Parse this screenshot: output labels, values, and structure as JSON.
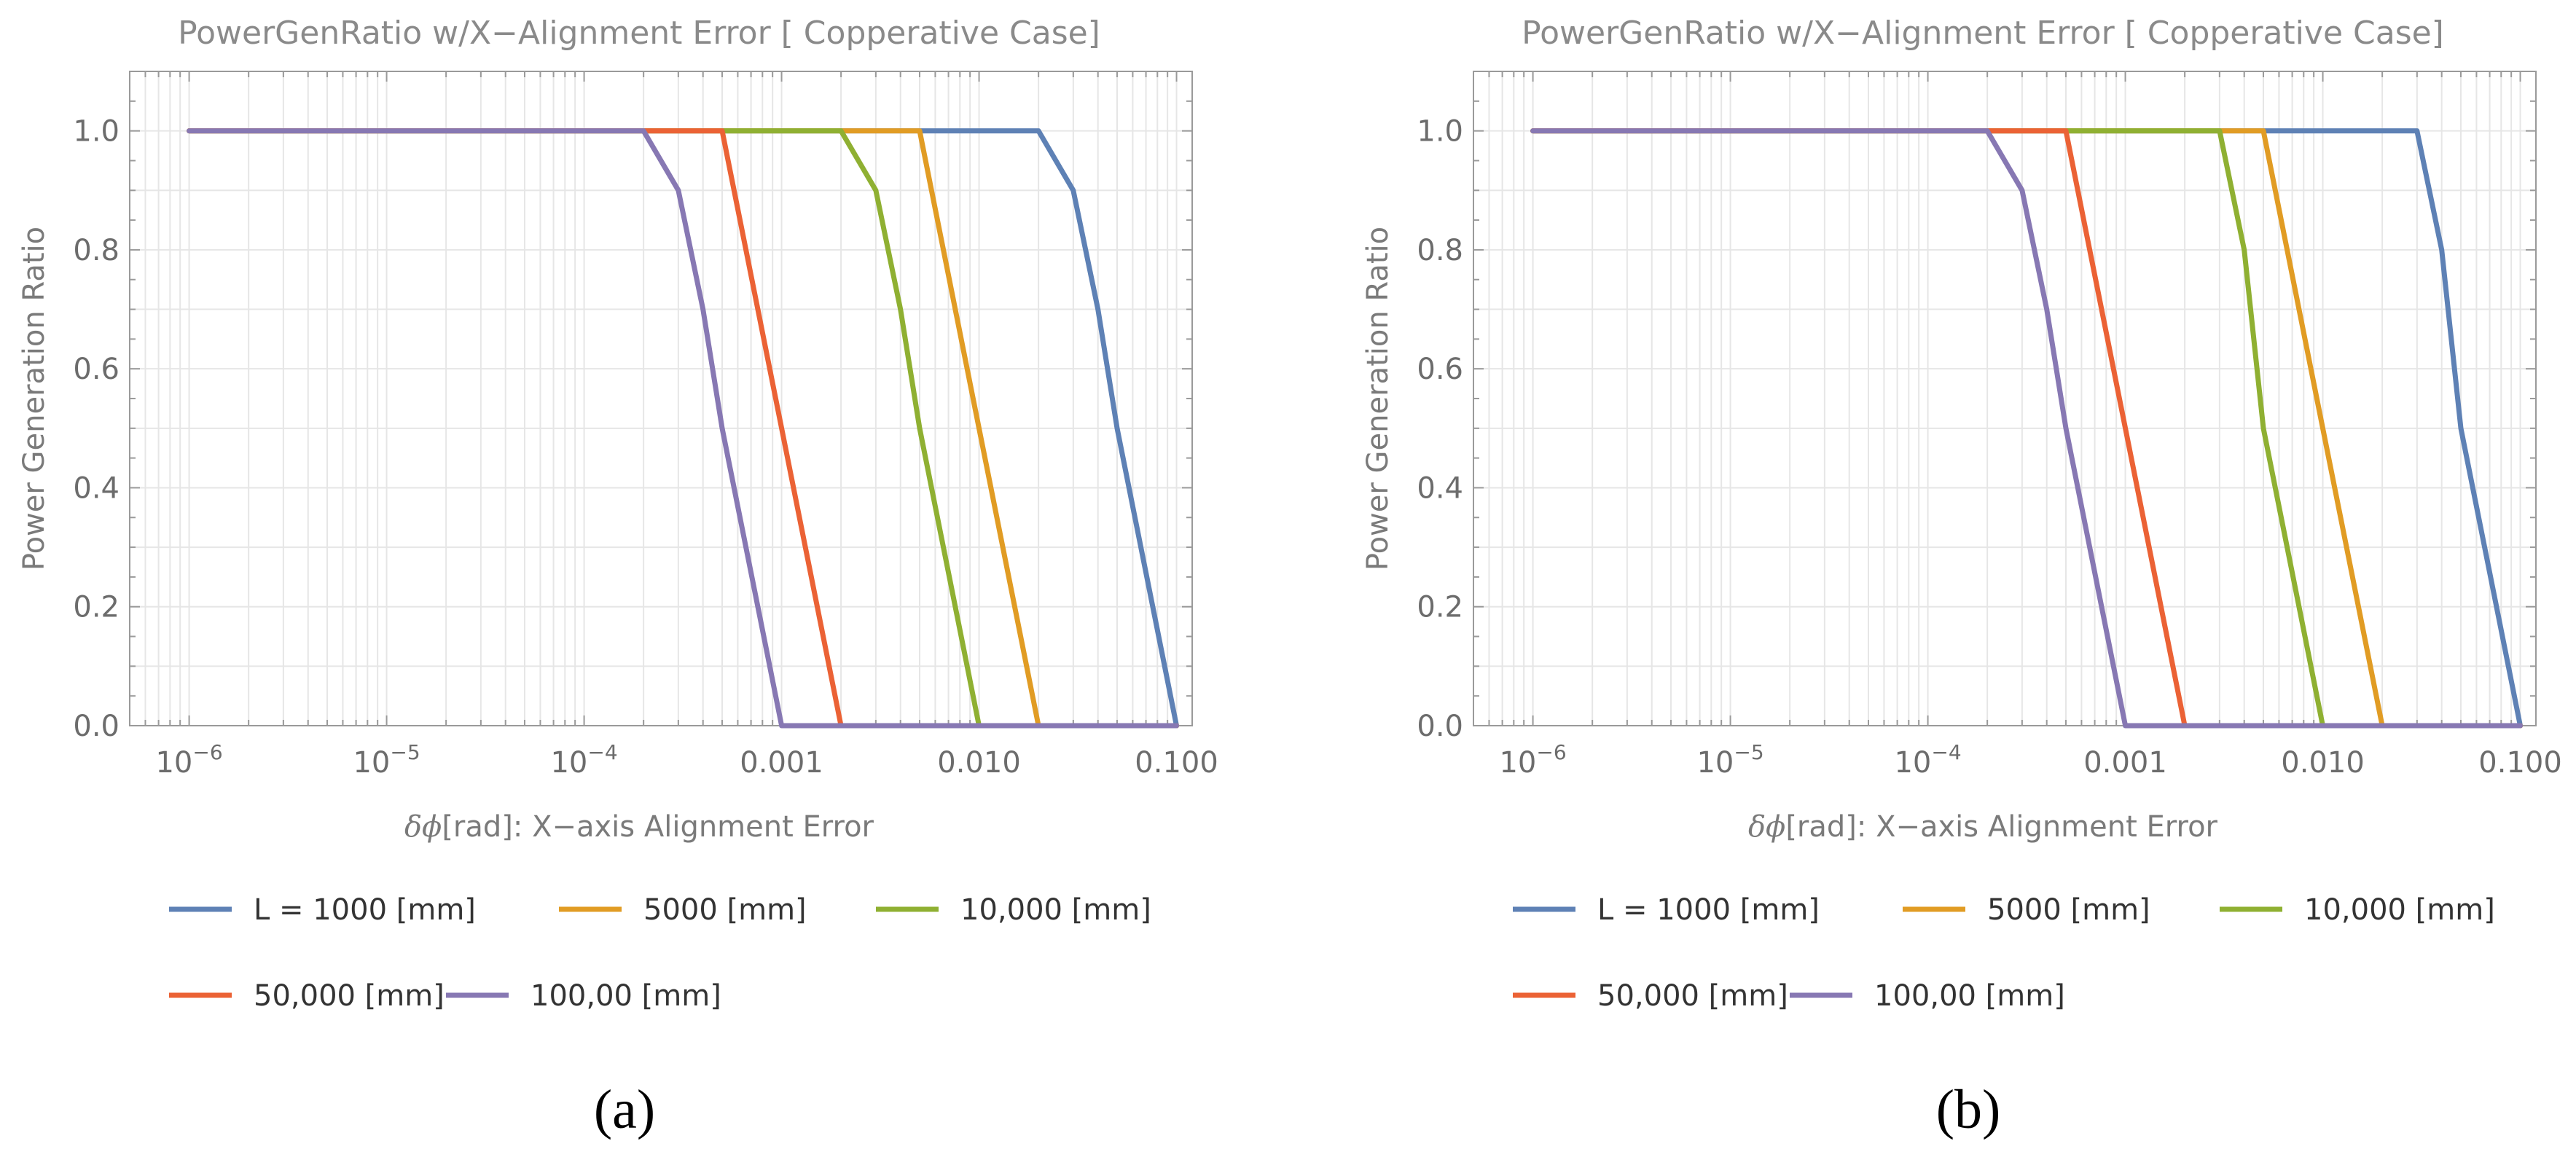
{
  "chart_data": [
    {
      "type": "line",
      "panel": "a",
      "caption": "(a)",
      "title": "PowerGenRatio w/X−Alignment Error [ Copperative Case]",
      "xlabel_symbol": "δϕ",
      "xlabel": "[rad]: X−axis Alignment Error",
      "ylabel": "Power Generation Ratio",
      "xscale": "log",
      "xlim": [
        5e-07,
        0.12
      ],
      "ylim": [
        0,
        1.1
      ],
      "x_major_ticks": [
        1e-06,
        1e-05,
        0.0001,
        0.001,
        0.01,
        0.1
      ],
      "x_tick_labels": [
        {
          "base": "10",
          "exp": "−6"
        },
        {
          "base": "10",
          "exp": "−5"
        },
        {
          "base": "10",
          "exp": "−4"
        },
        {
          "base": "0.001",
          "exp": ""
        },
        {
          "base": "0.010",
          "exp": ""
        },
        {
          "base": "0.100",
          "exp": ""
        }
      ],
      "y_major_ticks": [
        0,
        0.2,
        0.4,
        0.6,
        0.8,
        1.0
      ],
      "y_tick_labels": [
        "0.0",
        "0.2",
        "0.4",
        "0.6",
        "0.8",
        "1.0"
      ],
      "grid": true,
      "legend": [
        {
          "name": "L = 1000 [mm]",
          "color": "#5e81b5"
        },
        {
          "name": "5000 [mm]",
          "color": "#e19c24"
        },
        {
          "name": "10,000 [mm]",
          "color": "#8fb032"
        },
        {
          "name": "50,000 [mm]",
          "color": "#eb6235"
        },
        {
          "name": "100,00 [mm]",
          "color": "#8778b3"
        }
      ],
      "series": [
        {
          "name": "L = 1000 [mm]",
          "color": "#5e81b5",
          "x": [
            1e-06,
            2e-06,
            5e-06,
            1e-05,
            2e-05,
            5e-05,
            0.0001,
            0.0002,
            0.0005,
            0.001,
            0.002,
            0.005,
            0.01,
            0.02,
            0.03,
            0.04,
            0.05,
            0.1
          ],
          "y": [
            1.0,
            1.0,
            1.0,
            1.0,
            1.0,
            1.0,
            1.0,
            1.0,
            1.0,
            1.0,
            1.0,
            1.0,
            1.0,
            1.0,
            0.9,
            0.7,
            0.5,
            0.0
          ]
        },
        {
          "name": "5000 [mm]",
          "color": "#e19c24",
          "x": [
            1e-06,
            2e-06,
            5e-06,
            1e-05,
            2e-05,
            5e-05,
            0.0001,
            0.0002,
            0.0005,
            0.001,
            0.002,
            0.005,
            0.01,
            0.02,
            0.05,
            0.1
          ],
          "y": [
            1.0,
            1.0,
            1.0,
            1.0,
            1.0,
            1.0,
            1.0,
            1.0,
            1.0,
            1.0,
            1.0,
            1.0,
            0.5,
            0.0,
            0.0,
            0.0
          ]
        },
        {
          "name": "10,000 [mm]",
          "color": "#8fb032",
          "x": [
            1e-06,
            2e-06,
            5e-06,
            1e-05,
            2e-05,
            5e-05,
            0.0001,
            0.0002,
            0.0005,
            0.001,
            0.002,
            0.003,
            0.004,
            0.005,
            0.01,
            0.02,
            0.05,
            0.1
          ],
          "y": [
            1.0,
            1.0,
            1.0,
            1.0,
            1.0,
            1.0,
            1.0,
            1.0,
            1.0,
            1.0,
            1.0,
            0.9,
            0.7,
            0.5,
            0.0,
            0.0,
            0.0,
            0.0
          ]
        },
        {
          "name": "50,000 [mm]",
          "color": "#eb6235",
          "x": [
            1e-06,
            2e-06,
            5e-06,
            1e-05,
            2e-05,
            5e-05,
            0.0001,
            0.0002,
            0.0005,
            0.001,
            0.002,
            0.005,
            0.01,
            0.02,
            0.05,
            0.1
          ],
          "y": [
            1.0,
            1.0,
            1.0,
            1.0,
            1.0,
            1.0,
            1.0,
            1.0,
            1.0,
            0.5,
            0.0,
            0.0,
            0.0,
            0.0,
            0.0,
            0.0
          ]
        },
        {
          "name": "100,00 [mm]",
          "color": "#8778b3",
          "x": [
            1e-06,
            2e-06,
            5e-06,
            1e-05,
            2e-05,
            5e-05,
            0.0001,
            0.0002,
            0.0003,
            0.0004,
            0.0005,
            0.001,
            0.002,
            0.005,
            0.01,
            0.02,
            0.05,
            0.1
          ],
          "y": [
            1.0,
            1.0,
            1.0,
            1.0,
            1.0,
            1.0,
            1.0,
            1.0,
            0.9,
            0.7,
            0.5,
            0.0,
            0.0,
            0.0,
            0.0,
            0.0,
            0.0,
            0.0
          ]
        }
      ]
    },
    {
      "type": "line",
      "panel": "b",
      "caption": "(b)",
      "title": "PowerGenRatio w/X−Alignment Error [ Copperative Case]",
      "xlabel_symbol": "δϕ",
      "xlabel": "[rad]: X−axis Alignment Error",
      "ylabel": "Power Generation Ratio",
      "xscale": "log",
      "xlim": [
        5e-07,
        0.12
      ],
      "ylim": [
        0,
        1.1
      ],
      "x_major_ticks": [
        1e-06,
        1e-05,
        0.0001,
        0.001,
        0.01,
        0.1
      ],
      "x_tick_labels": [
        {
          "base": "10",
          "exp": "−6"
        },
        {
          "base": "10",
          "exp": "−5"
        },
        {
          "base": "10",
          "exp": "−4"
        },
        {
          "base": "0.001",
          "exp": ""
        },
        {
          "base": "0.010",
          "exp": ""
        },
        {
          "base": "0.100",
          "exp": ""
        }
      ],
      "y_major_ticks": [
        0,
        0.2,
        0.4,
        0.6,
        0.8,
        1.0
      ],
      "y_tick_labels": [
        "0.0",
        "0.2",
        "0.4",
        "0.6",
        "0.8",
        "1.0"
      ],
      "grid": true,
      "legend": [
        {
          "name": "L = 1000 [mm]",
          "color": "#5e81b5"
        },
        {
          "name": "5000 [mm]",
          "color": "#e19c24"
        },
        {
          "name": "10,000 [mm]",
          "color": "#8fb032"
        },
        {
          "name": "50,000 [mm]",
          "color": "#eb6235"
        },
        {
          "name": "100,00 [mm]",
          "color": "#8778b3"
        }
      ],
      "series": [
        {
          "name": "L = 1000 [mm]",
          "color": "#5e81b5",
          "x": [
            1e-06,
            2e-06,
            5e-06,
            1e-05,
            2e-05,
            5e-05,
            0.0001,
            0.0002,
            0.0005,
            0.001,
            0.002,
            0.005,
            0.01,
            0.02,
            0.03,
            0.04,
            0.05,
            0.1
          ],
          "y": [
            1.0,
            1.0,
            1.0,
            1.0,
            1.0,
            1.0,
            1.0,
            1.0,
            1.0,
            1.0,
            1.0,
            1.0,
            1.0,
            1.0,
            1.0,
            0.8,
            0.5,
            0.0
          ]
        },
        {
          "name": "5000 [mm]",
          "color": "#e19c24",
          "x": [
            1e-06,
            2e-06,
            5e-06,
            1e-05,
            2e-05,
            5e-05,
            0.0001,
            0.0002,
            0.0005,
            0.001,
            0.002,
            0.005,
            0.01,
            0.02,
            0.05,
            0.1
          ],
          "y": [
            1.0,
            1.0,
            1.0,
            1.0,
            1.0,
            1.0,
            1.0,
            1.0,
            1.0,
            1.0,
            1.0,
            1.0,
            0.5,
            0.0,
            0.0,
            0.0
          ]
        },
        {
          "name": "10,000 [mm]",
          "color": "#8fb032",
          "x": [
            1e-06,
            2e-06,
            5e-06,
            1e-05,
            2e-05,
            5e-05,
            0.0001,
            0.0002,
            0.0005,
            0.001,
            0.002,
            0.003,
            0.004,
            0.005,
            0.01,
            0.02,
            0.05,
            0.1
          ],
          "y": [
            1.0,
            1.0,
            1.0,
            1.0,
            1.0,
            1.0,
            1.0,
            1.0,
            1.0,
            1.0,
            1.0,
            1.0,
            0.8,
            0.5,
            0.0,
            0.0,
            0.0,
            0.0
          ]
        },
        {
          "name": "50,000 [mm]",
          "color": "#eb6235",
          "x": [
            1e-06,
            2e-06,
            5e-06,
            1e-05,
            2e-05,
            5e-05,
            0.0001,
            0.0002,
            0.0005,
            0.001,
            0.002,
            0.005,
            0.01,
            0.02,
            0.05,
            0.1
          ],
          "y": [
            1.0,
            1.0,
            1.0,
            1.0,
            1.0,
            1.0,
            1.0,
            1.0,
            1.0,
            0.5,
            0.0,
            0.0,
            0.0,
            0.0,
            0.0,
            0.0
          ]
        },
        {
          "name": "100,00 [mm]",
          "color": "#8778b3",
          "x": [
            1e-06,
            2e-06,
            5e-06,
            1e-05,
            2e-05,
            5e-05,
            0.0001,
            0.0002,
            0.0003,
            0.0004,
            0.0005,
            0.001,
            0.002,
            0.005,
            0.01,
            0.02,
            0.05,
            0.1
          ],
          "y": [
            1.0,
            1.0,
            1.0,
            1.0,
            1.0,
            1.0,
            1.0,
            1.0,
            0.9,
            0.7,
            0.5,
            0.0,
            0.0,
            0.0,
            0.0,
            0.0,
            0.0,
            0.0
          ]
        }
      ]
    }
  ]
}
